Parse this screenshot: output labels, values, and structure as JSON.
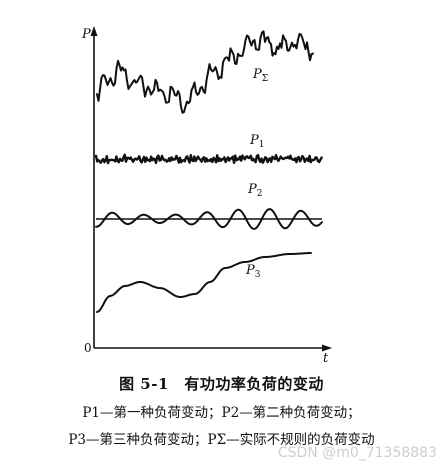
{
  "chart_data": {
    "type": "line",
    "axis": {
      "y_label": "P",
      "x_label": "t",
      "origin_label": "0"
    },
    "series": [
      {
        "name": "PΣ",
        "kind": "irregular"
      },
      {
        "name": "P1",
        "kind": "small-random"
      },
      {
        "name": "P2",
        "kind": "periodic"
      },
      {
        "name": "P3",
        "kind": "slow-trend"
      }
    ],
    "grid": false,
    "legend": "labels near curves"
  },
  "caption": {
    "title": "图 5-1　有功功率负荷的变动",
    "line1": "P1—第一种负荷变动；P2—第二种负荷变动；",
    "line2": "P3—第三种负荷变动；PΣ—实际不规则的负荷变动"
  },
  "watermark": "CSDN @m0_71358883"
}
